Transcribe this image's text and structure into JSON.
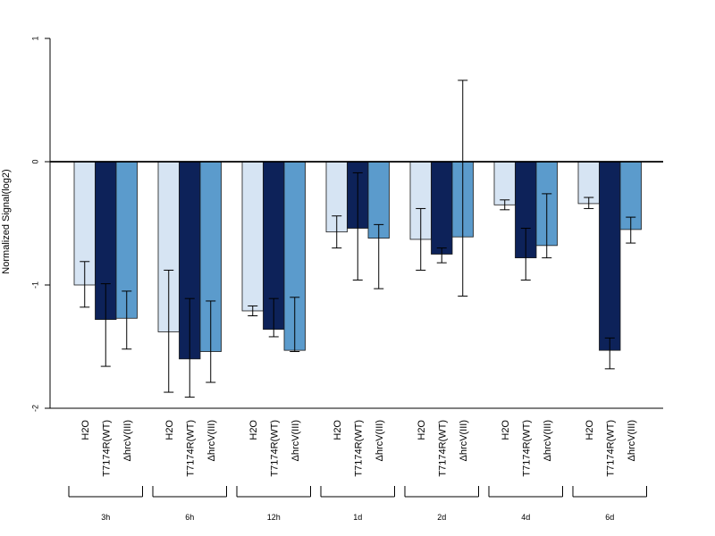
{
  "chart_data": {
    "type": "bar",
    "ylabel": "Normalized Signal(log2)",
    "ylim": [
      -2,
      1
    ],
    "yticks": [
      "1",
      "0",
      "-1",
      "-2"
    ],
    "grid": false,
    "groups": [
      "3h",
      "6h",
      "12h",
      "1d",
      "2d",
      "4d",
      "6d"
    ],
    "series": [
      {
        "name": "H2O",
        "color": "#d6e4f3",
        "values": [
          -1.0,
          -1.38,
          -1.21,
          -0.57,
          -0.63,
          -0.35,
          -0.34
        ],
        "err_low": [
          -1.18,
          -1.87,
          -1.25,
          -0.7,
          -0.88,
          -0.39,
          -0.38
        ],
        "err_high": [
          -0.81,
          -0.88,
          -1.17,
          -0.44,
          -0.38,
          -0.31,
          -0.29
        ]
      },
      {
        "name": "T7174R(WT)",
        "color": "#0d2259",
        "values": [
          -1.28,
          -1.6,
          -1.36,
          -0.54,
          -0.75,
          -0.78,
          -1.53
        ],
        "err_low": [
          -1.66,
          -1.91,
          -1.42,
          -0.96,
          -0.82,
          -0.96,
          -1.68
        ],
        "err_high": [
          -0.99,
          -1.11,
          -1.11,
          -0.09,
          -0.7,
          -0.54,
          -1.43
        ]
      },
      {
        "name": "ΔhrcV(III)",
        "color": "#5b9bcc",
        "values": [
          -1.27,
          -1.54,
          -1.53,
          -0.62,
          -0.61,
          -0.68,
          -0.55
        ],
        "err_low": [
          -1.52,
          -1.79,
          -1.54,
          -1.03,
          -1.09,
          -0.78,
          -0.66
        ],
        "err_high": [
          -1.05,
          -1.13,
          -1.1,
          -0.51,
          0.66,
          -0.26,
          -0.45
        ]
      }
    ],
    "bar_labels": [
      "H2O",
      "T7174R(WT)",
      "ΔhrcV(III)"
    ]
  }
}
